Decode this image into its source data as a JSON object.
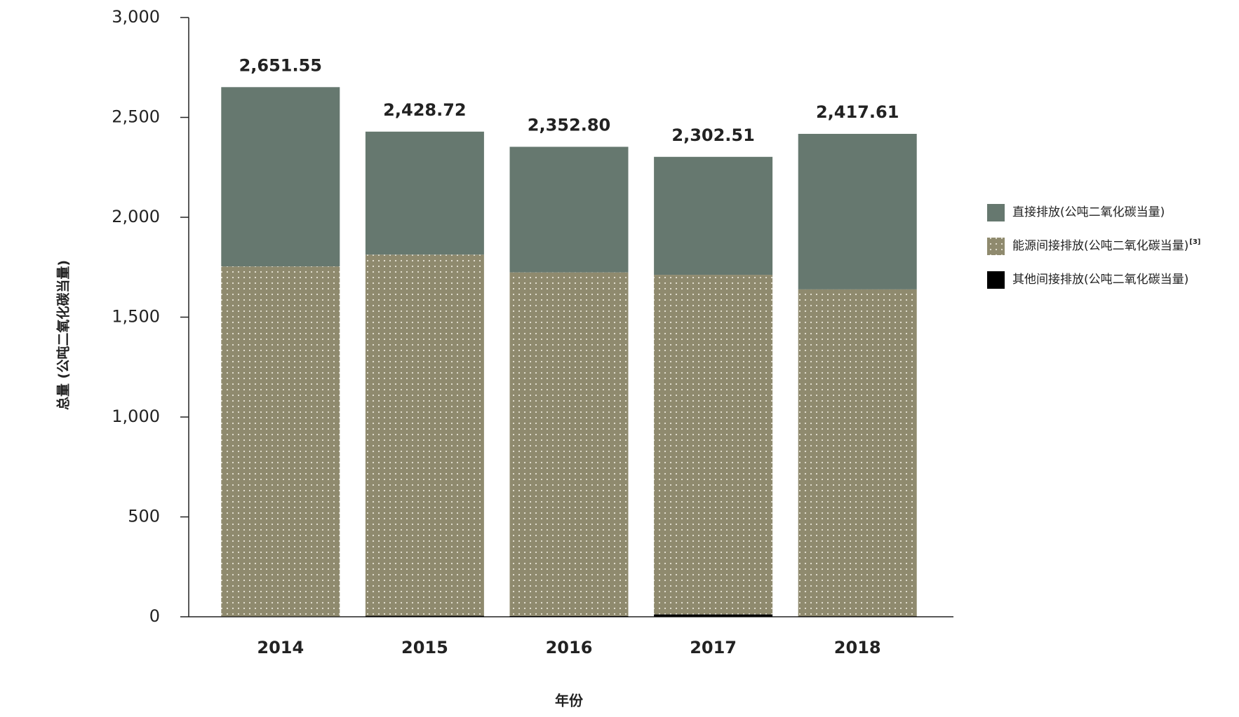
{
  "chart_data": {
    "type": "stacked_bar",
    "y_label": "总量 (公吨二氧化碳当量)",
    "x_label": "年份",
    "categories": [
      "2014",
      "2015",
      "2016",
      "2017",
      "2018"
    ],
    "series": [
      {
        "name": "其他间接排放(公吨二氧化碳当量)",
        "color": "#000000",
        "values": [
          2,
          5,
          4,
          12,
          3
        ]
      },
      {
        "name": "能源间接排放(公吨二氧化碳当量)",
        "footnote": "[3]",
        "color": "#8f8a6e",
        "pattern": "dots",
        "values": [
          1752,
          1808,
          1720,
          1700,
          1636
        ]
      },
      {
        "name": "直接排放(公吨二氧化碳当量)",
        "color": "#66786f",
        "values": [
          897.55,
          615.72,
          628.8,
          590.51,
          778.61
        ]
      }
    ],
    "totals": [
      2651.55,
      2428.72,
      2352.8,
      2302.51,
      2417.61
    ],
    "value_labels": [
      "2,651.55",
      "2,428.72",
      "2,352.80",
      "2,302.51",
      "2,417.61"
    ],
    "ylim": [
      0,
      3000
    ],
    "yticks": [
      0,
      500,
      {
        "value": 1000,
        "label": "1,000"
      },
      {
        "value": 1500,
        "label": "1,500"
      },
      {
        "value": 2000,
        "label": "2,000"
      },
      {
        "value": 2500,
        "label": "2,500"
      },
      {
        "value": 3000,
        "label": "3,000"
      }
    ],
    "grid": false,
    "legend_position": "right"
  }
}
